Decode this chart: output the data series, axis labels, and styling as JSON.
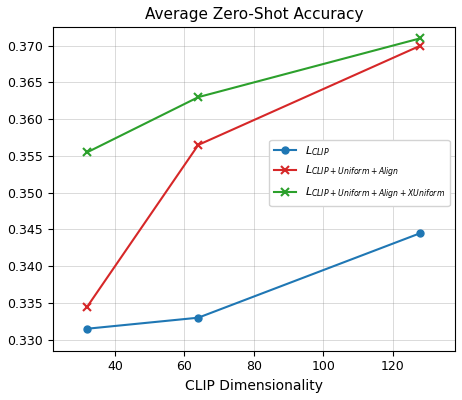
{
  "title": "Average Zero-Shot Accuracy",
  "xlabel": "CLIP Dimensionality",
  "x": [
    32,
    64,
    128
  ],
  "blue_y": [
    0.3315,
    0.333,
    0.3445
  ],
  "red_y": [
    0.3345,
    0.3565,
    0.37
  ],
  "green_y": [
    0.3555,
    0.363,
    0.371
  ],
  "blue_color": "#1f77b4",
  "red_color": "#d62728",
  "green_color": "#2ca02c",
  "ylim": [
    0.3285,
    0.3725
  ],
  "xlim": [
    22,
    138
  ],
  "xticks": [
    40,
    60,
    80,
    100,
    120
  ],
  "yticks": [
    0.33,
    0.335,
    0.34,
    0.345,
    0.35,
    0.355,
    0.36,
    0.365,
    0.37
  ]
}
